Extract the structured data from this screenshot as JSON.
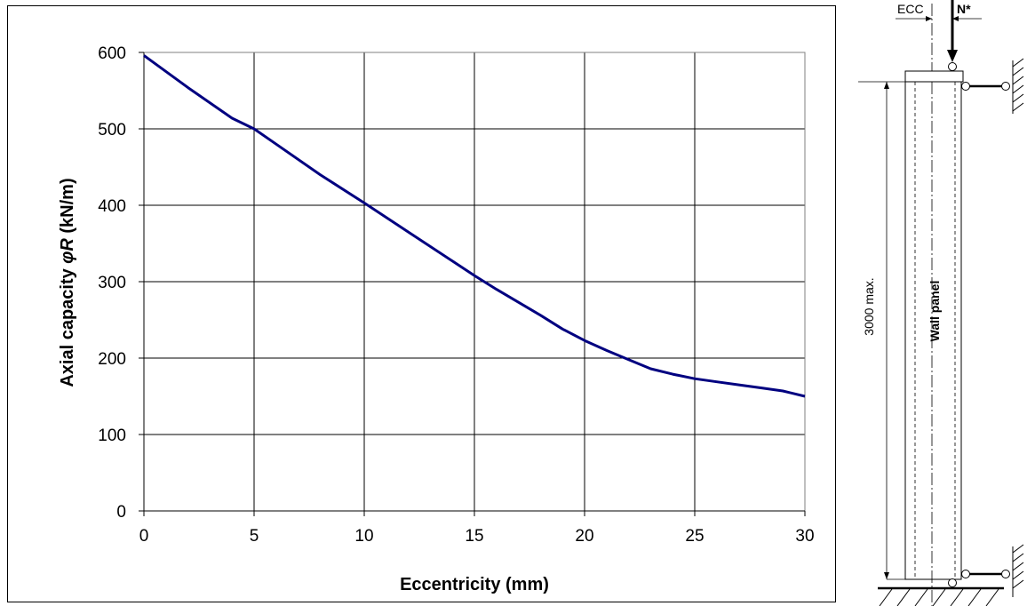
{
  "chart_data": {
    "type": "line",
    "xlabel": "Eccentricity (mm)",
    "ylabel_prefix": "Axial capacity  ",
    "ylabel_symbol_phi": "φ",
    "ylabel_symbol_r": "R",
    "ylabel_suffix": " (kN/m)",
    "xlim": [
      0,
      30
    ],
    "ylim": [
      0,
      600
    ],
    "x_ticks": [
      0,
      5,
      10,
      15,
      20,
      25,
      30
    ],
    "y_ticks": [
      0,
      100,
      200,
      300,
      400,
      500,
      600
    ],
    "grid": true,
    "line_color": "#000080",
    "series": [
      {
        "x": [
          0,
          2,
          4,
          5,
          6,
          8,
          10,
          12,
          14,
          15,
          16,
          17,
          18,
          19,
          20,
          21,
          22,
          23,
          24,
          25,
          26,
          27,
          28,
          29,
          30
        ],
        "values": [
          596,
          554,
          514,
          500,
          480,
          440,
          403,
          365,
          327,
          308,
          290,
          273,
          256,
          238,
          223,
          210,
          198,
          186,
          179,
          173,
          169,
          165,
          161,
          157,
          150
        ]
      }
    ]
  },
  "diagram": {
    "ecc_label": "ECC",
    "load_label": "N*",
    "height_label": "3000 max.",
    "panel_label": "Wall panel"
  }
}
